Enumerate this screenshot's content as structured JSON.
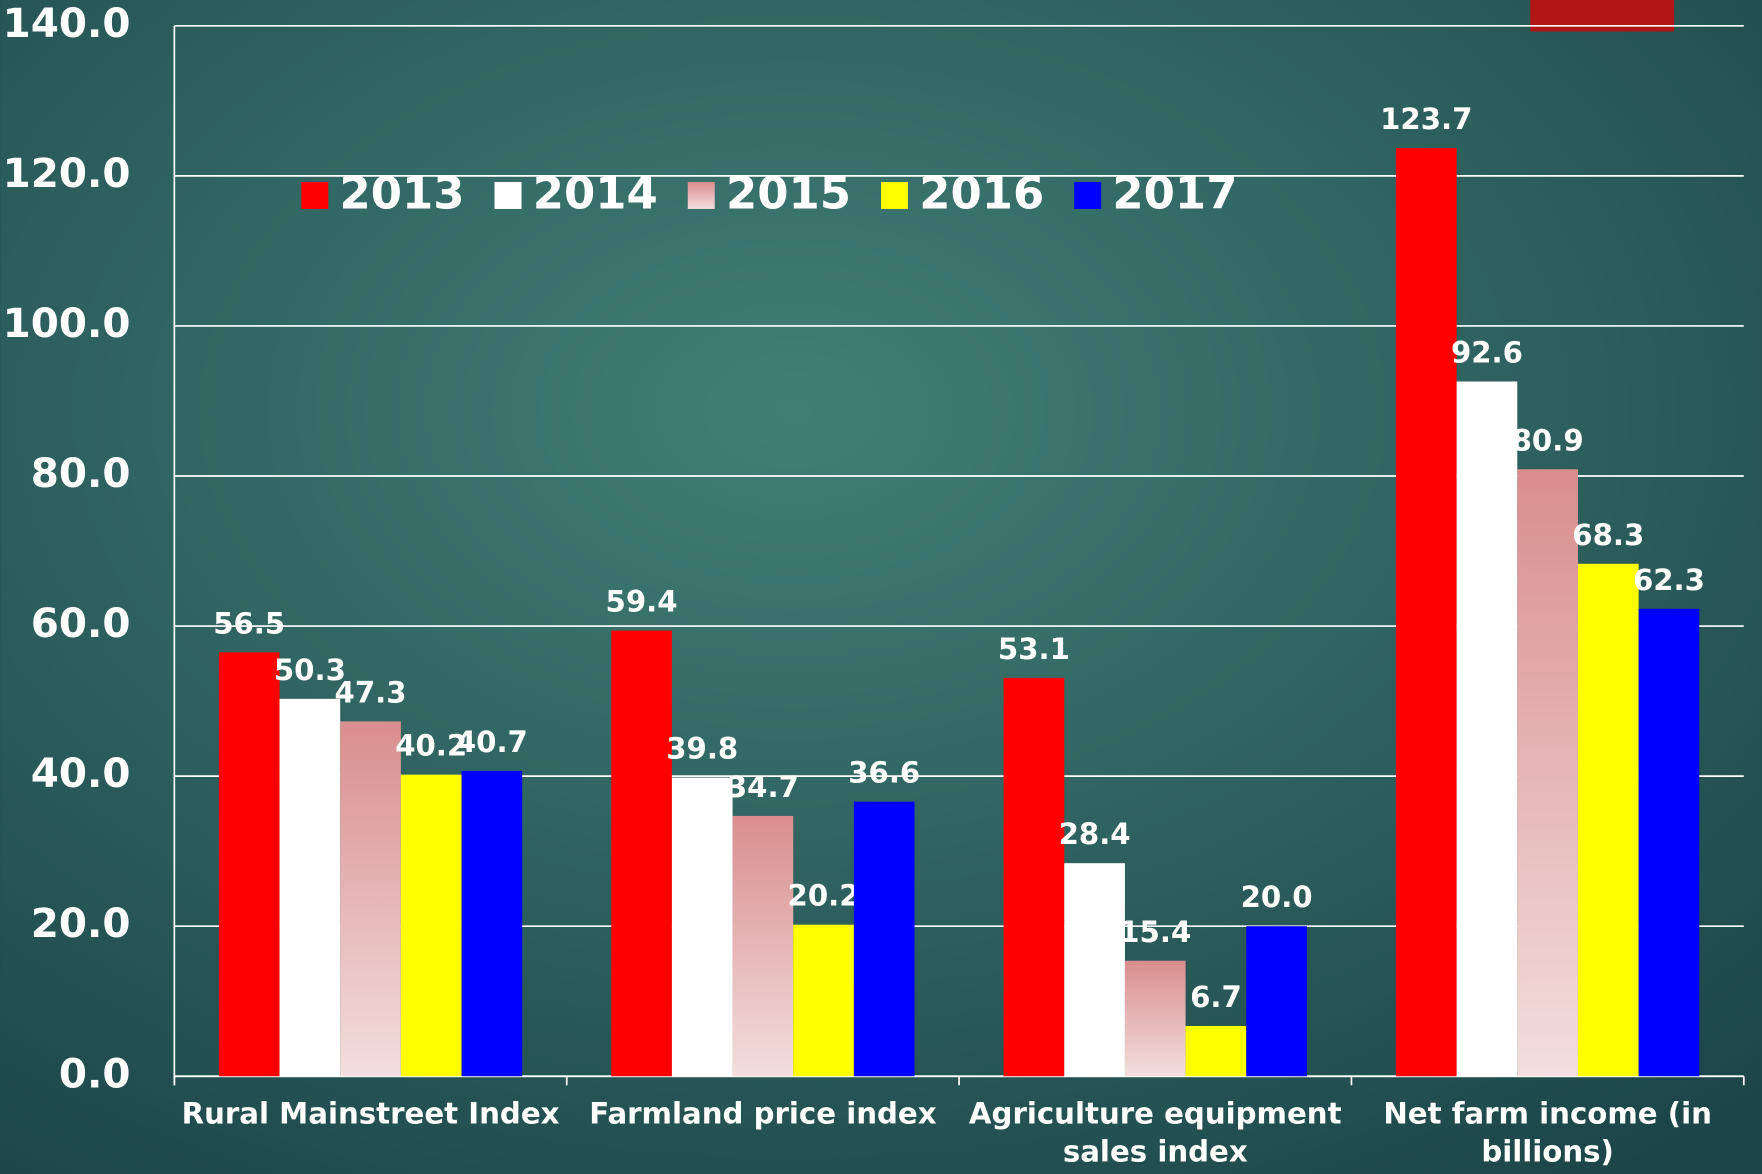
{
  "chart_data": {
    "type": "bar",
    "categories": [
      "Rural Mainstreet Index",
      "Farmland price index",
      "Agriculture equipment sales index",
      "Net farm income (in billions)"
    ],
    "series": [
      {
        "name": "2013",
        "color": "#ff0000",
        "values": [
          56.5,
          59.4,
          53.1,
          123.7
        ]
      },
      {
        "name": "2014",
        "color": "#ffffff",
        "values": [
          50.3,
          39.8,
          28.4,
          92.6
        ]
      },
      {
        "name": "2015",
        "color": "#d98e8e",
        "values": [
          47.3,
          34.7,
          15.4,
          80.9
        ]
      },
      {
        "name": "2016",
        "color": "#ffff00",
        "values": [
          40.2,
          20.2,
          6.7,
          68.3
        ]
      },
      {
        "name": "2017",
        "color": "#0000ff",
        "values": [
          40.7,
          36.6,
          20.0,
          62.3
        ],
        "value_labels": [
          "40.7",
          "36.6",
          "20.0",
          "62.3"
        ]
      }
    ],
    "ylim": [
      0,
      140
    ],
    "yticks": [
      {
        "value": 0,
        "label": "0.0"
      },
      {
        "value": 20,
        "label": "20.0"
      },
      {
        "value": 40,
        "label": "40.0"
      },
      {
        "value": 60,
        "label": "60.0"
      },
      {
        "value": 80,
        "label": "80.0"
      },
      {
        "value": 100,
        "label": "100.0"
      },
      {
        "value": 120,
        "label": "120.0"
      },
      {
        "value": 140,
        "label": "140.0"
      }
    ],
    "grid": true
  }
}
